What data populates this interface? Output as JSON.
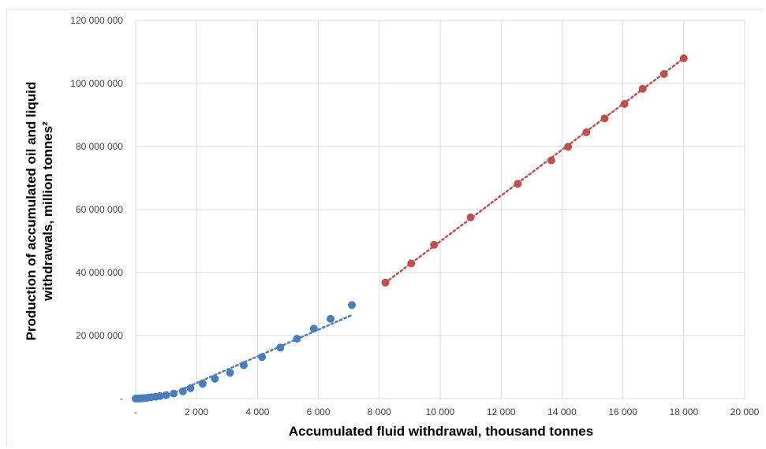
{
  "chart_data": {
    "type": "scatter",
    "title": "",
    "xlabel": "Accumulated fluid withdrawal, thousand tonnes",
    "ylabel_lines": [
      "Production of accumulated oil and liquid",
      "withdrawals, million tonnes²"
    ],
    "xlim": [
      0,
      20000
    ],
    "ylim": [
      0,
      120000000
    ],
    "x_ticks": [
      0,
      2000,
      4000,
      6000,
      8000,
      10000,
      12000,
      14000,
      16000,
      18000,
      20000
    ],
    "x_tick_labels": [
      "-",
      "2 000",
      "4 000",
      "6 000",
      "8 000",
      "10 000",
      "12 000",
      "14 000",
      "16 000",
      "18 000",
      "20 000"
    ],
    "y_ticks": [
      0,
      20000000,
      40000000,
      60000000,
      80000000,
      100000000,
      120000000
    ],
    "y_tick_labels": [
      "-",
      "20 000 000",
      "40 000 000",
      "60 000 000",
      "80 000 000",
      "100 000 000",
      "120 000 000"
    ],
    "grid": true,
    "legend": "none",
    "series": [
      {
        "color": "#4a7ebb",
        "points": [
          [
            0,
            0
          ],
          [
            50,
            10000
          ],
          [
            100,
            30000
          ],
          [
            150,
            50000
          ],
          [
            200,
            80000
          ],
          [
            280,
            150000
          ],
          [
            380,
            250000
          ],
          [
            500,
            400000
          ],
          [
            650,
            600000
          ],
          [
            800,
            800000
          ],
          [
            1000,
            1100000
          ],
          [
            1250,
            1600000
          ],
          [
            1550,
            2300000
          ],
          [
            1800,
            3300000
          ],
          [
            2200,
            4700000
          ],
          [
            2600,
            6300000
          ],
          [
            3100,
            8200000
          ],
          [
            3550,
            10600000
          ],
          [
            4150,
            13200000
          ],
          [
            4750,
            16200000
          ],
          [
            5300,
            19000000
          ],
          [
            5850,
            22200000
          ],
          [
            6400,
            25300000
          ],
          [
            7100,
            29700000
          ]
        ],
        "trendline": {
          "style": "dotted",
          "from": [
            1300,
            2000000
          ],
          "to": [
            7100,
            26500000
          ]
        }
      },
      {
        "color": "#c0504d",
        "points": [
          [
            8200,
            36800000
          ],
          [
            9050,
            42900000
          ],
          [
            9800,
            48800000
          ],
          [
            11000,
            57500000
          ],
          [
            12550,
            68200000
          ],
          [
            13650,
            75600000
          ],
          [
            14200,
            79900000
          ],
          [
            14800,
            84500000
          ],
          [
            15400,
            88900000
          ],
          [
            16050,
            93500000
          ],
          [
            16650,
            98300000
          ],
          [
            17350,
            103000000
          ],
          [
            18000,
            108000000
          ]
        ],
        "trendline": {
          "style": "dotted",
          "from": [
            8200,
            36800000
          ],
          "to": [
            18000,
            108000000
          ]
        }
      }
    ]
  }
}
